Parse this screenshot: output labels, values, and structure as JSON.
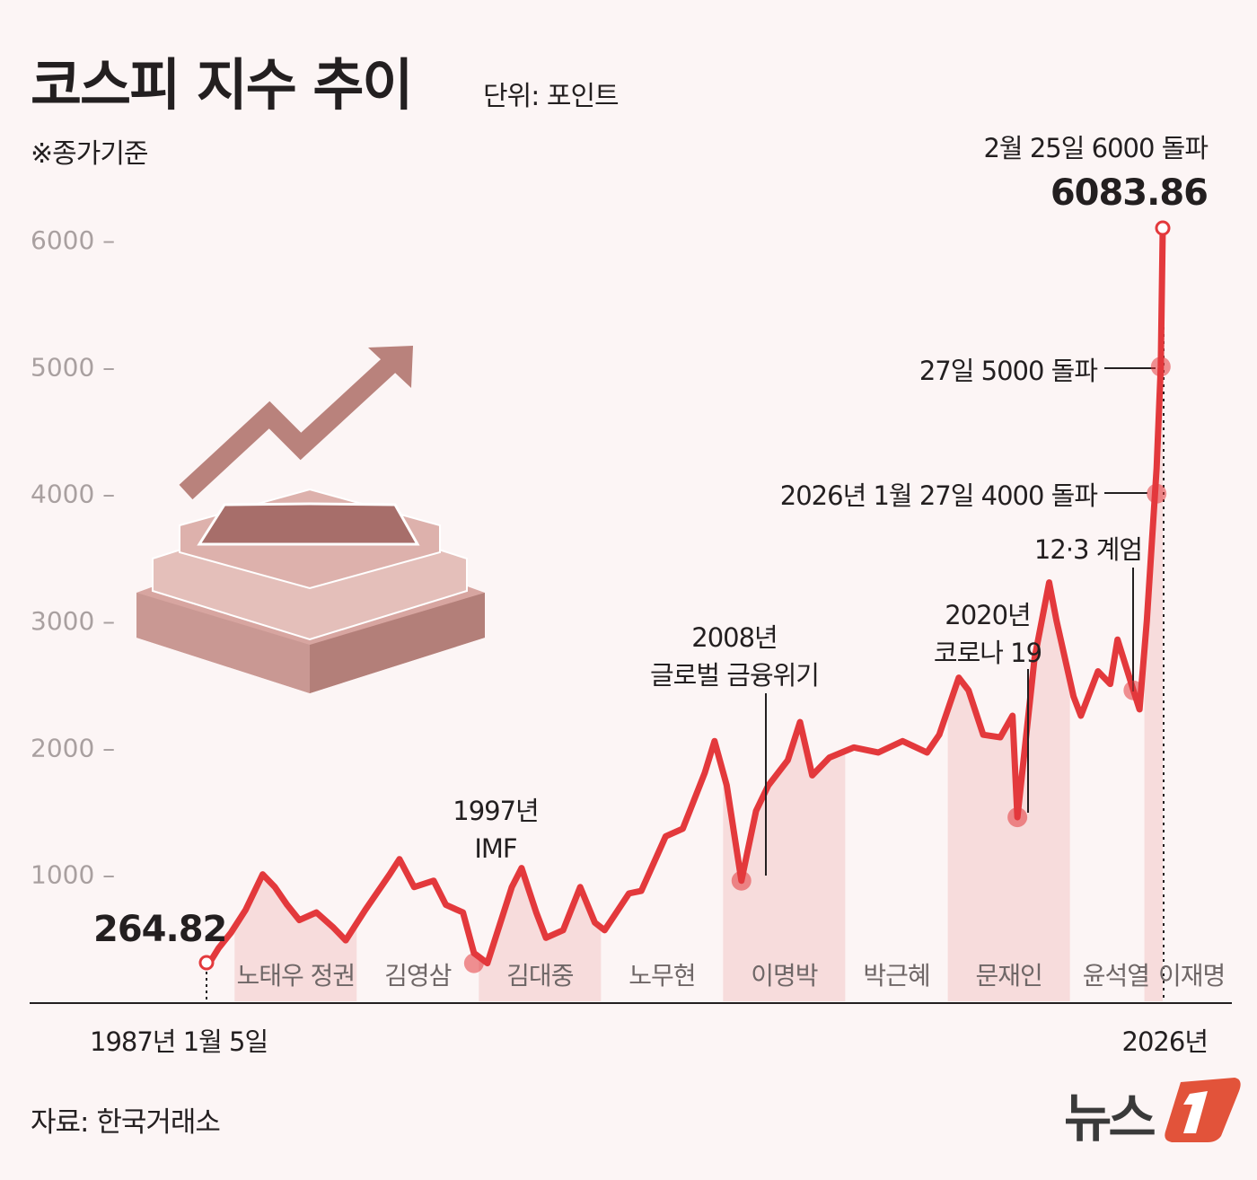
{
  "title": "코스피 지수 추이",
  "unit": "단위: 포인트",
  "note": "※종가기준",
  "source": "자료: 한국거래소",
  "logo": {
    "text": "뉴스1"
  },
  "colors": {
    "line": "#e3393c",
    "shade": "#f6dede",
    "background": "#fcf5f5",
    "logo_orange": "#e2533a"
  },
  "chart_data": {
    "type": "line",
    "title": "코스피 지수 추이",
    "ylabel": "포인트",
    "ylim": [
      0,
      6000
    ],
    "yticks": [
      1000,
      2000,
      3000,
      4000,
      5000,
      6000
    ],
    "ytick_labels": [
      "1000 –",
      "2000 –",
      "3000 –",
      "4000 –",
      "5000 –",
      "6000 –"
    ],
    "xlim": [
      1987.0,
      2026.15
    ],
    "x_start_label": "1987년 1월 5일",
    "x_end_label": "2026년",
    "start_value_label": "264.82",
    "end_value_label": "6083.86",
    "series": [
      {
        "name": "코스피",
        "x": [
          1987.0,
          1987.5,
          1988.0,
          1988.6,
          1989.3,
          1989.8,
          1990.3,
          1990.8,
          1991.5,
          1992.2,
          1992.7,
          1993.5,
          1994.5,
          1994.9,
          1995.5,
          1996.3,
          1996.8,
          1997.5,
          1997.95,
          1998.5,
          1999.5,
          1999.9,
          2000.5,
          2000.9,
          2001.6,
          2002.3,
          2002.9,
          2003.3,
          2004.3,
          2004.8,
          2005.8,
          2006.5,
          2007.4,
          2007.8,
          2008.3,
          2008.9,
          2009.5,
          2010.0,
          2010.8,
          2011.3,
          2011.8,
          2012.5,
          2013.5,
          2014.5,
          2015.5,
          2016.5,
          2017.0,
          2017.8,
          2018.2,
          2018.8,
          2019.5,
          2020.0,
          2020.2,
          2020.9,
          2021.5,
          2021.8,
          2022.5,
          2022.8,
          2023.5,
          2024.0,
          2024.3,
          2024.95,
          2025.2,
          2025.5,
          2025.9,
          2026.07,
          2026.15
        ],
        "y": [
          265,
          420,
          540,
          720,
          1000,
          900,
          760,
          640,
          700,
          580,
          480,
          720,
          1000,
          1120,
          900,
          950,
          760,
          700,
          380,
          300,
          900,
          1050,
          700,
          500,
          560,
          900,
          620,
          560,
          850,
          870,
          1300,
          1360,
          1800,
          2050,
          1700,
          950,
          1500,
          1700,
          1900,
          2200,
          1780,
          1920,
          2000,
          1960,
          2050,
          1960,
          2100,
          2550,
          2450,
          2100,
          2080,
          2250,
          1450,
          2700,
          3300,
          3000,
          2400,
          2250,
          2600,
          2500,
          2850,
          2450,
          2300,
          3000,
          4200,
          5000,
          6084
        ]
      }
    ],
    "terms": [
      {
        "label": "노태우 정권",
        "start": 1988.15,
        "end": 1993.15,
        "shaded": true
      },
      {
        "label": "김영삼",
        "start": 1993.15,
        "end": 1998.15,
        "shaded": false
      },
      {
        "label": "김대중",
        "start": 1998.15,
        "end": 2003.15,
        "shaded": true
      },
      {
        "label": "노무현",
        "start": 2003.15,
        "end": 2008.15,
        "shaded": false
      },
      {
        "label": "이명박",
        "start": 2008.15,
        "end": 2013.15,
        "shaded": true
      },
      {
        "label": "박근혜",
        "start": 2013.15,
        "end": 2017.35,
        "shaded": false
      },
      {
        "label": "문재인",
        "start": 2017.35,
        "end": 2022.35,
        "shaded": true
      },
      {
        "label": "윤석열",
        "start": 2022.35,
        "end": 2025.4,
        "shaded": false
      },
      {
        "label": "이재명",
        "start": 2025.4,
        "end": 2026.15,
        "shaded": true
      }
    ],
    "annotations": [
      {
        "lines": [
          "1997년",
          "IMF"
        ],
        "x": 1997.95,
        "y": 300
      },
      {
        "lines": [
          "2008년",
          "글로벌 금융위기"
        ],
        "x": 2008.9,
        "y": 950
      },
      {
        "lines": [
          "2020년",
          "코로나 19"
        ],
        "x": 2020.2,
        "y": 1450
      },
      {
        "lines": [
          "12·3 계엄"
        ],
        "x": 2024.95,
        "y": 2450
      },
      {
        "lines": [
          "2026년 1월 27일 4000 돌파"
        ],
        "x": 2025.9,
        "y": 4000
      },
      {
        "lines": [
          "27일 5000 돌파"
        ],
        "x": 2026.07,
        "y": 5000
      },
      {
        "lines": [
          "2월 25일 6000 돌파"
        ],
        "x": 2026.15,
        "y": 6084
      }
    ]
  }
}
